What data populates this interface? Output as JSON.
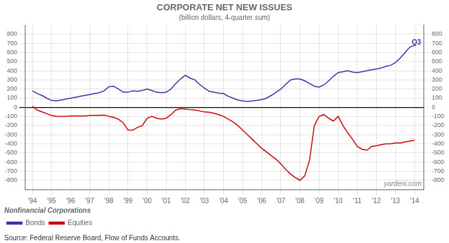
{
  "chart_data": {
    "type": "line",
    "title": "CORPORATE NET NEW ISSUES",
    "subtitle": "(billion dollars, 4-quarter sum)",
    "source": "Source: Federal Reserve Board, Flow of Funds Accounts.",
    "watermark": "yardeni.com",
    "annotations": [
      {
        "text": "Q3",
        "x": 2013.85,
        "y": 670,
        "color": "#3333aa"
      }
    ],
    "legend": "lower left",
    "legend_title": "Nonfinancial Corporations",
    "grid": true,
    "xlim": [
      1993.6,
      2014.5
    ],
    "xticks": [
      {
        "value": 1994,
        "label": "'94"
      },
      {
        "value": 1995,
        "label": "'95"
      },
      {
        "value": 1996,
        "label": "'96"
      },
      {
        "value": 1997,
        "label": "'97"
      },
      {
        "value": 1998,
        "label": "'98"
      },
      {
        "value": 1999,
        "label": "'99"
      },
      {
        "value": 2000,
        "label": "'00"
      },
      {
        "value": 2001,
        "label": "'01"
      },
      {
        "value": 2002,
        "label": "'02"
      },
      {
        "value": 2003,
        "label": "'03"
      },
      {
        "value": 2004,
        "label": "'04"
      },
      {
        "value": 2005,
        "label": "'05"
      },
      {
        "value": 2006,
        "label": "'06"
      },
      {
        "value": 2007,
        "label": "'07"
      },
      {
        "value": 2008,
        "label": "'08"
      },
      {
        "value": 2009,
        "label": "'09"
      },
      {
        "value": 2010,
        "label": "'10"
      },
      {
        "value": 2011,
        "label": "'11"
      },
      {
        "value": 2012,
        "label": "'12"
      },
      {
        "value": 2013,
        "label": "'13"
      },
      {
        "value": 2014,
        "label": "'14"
      }
    ],
    "ylim": [
      -900,
      900
    ],
    "yticks": [
      -800,
      -700,
      -600,
      -500,
      -400,
      -300,
      -200,
      -100,
      0,
      100,
      200,
      300,
      400,
      500,
      600,
      700,
      800
    ],
    "y2lim": [
      -900,
      900
    ],
    "y2ticks": [
      -800,
      -700,
      -600,
      -500,
      -400,
      -300,
      -200,
      -100,
      0,
      100,
      200,
      300,
      400,
      500,
      600,
      700,
      800
    ],
    "x": [
      1994,
      1994.25,
      1994.5,
      1994.75,
      1995,
      1995.25,
      1995.5,
      1995.75,
      1996,
      1996.25,
      1996.5,
      1996.75,
      1997,
      1997.25,
      1997.5,
      1997.75,
      1998,
      1998.25,
      1998.5,
      1998.75,
      1999,
      1999.25,
      1999.5,
      1999.75,
      2000,
      2000.25,
      2000.5,
      2000.75,
      2001,
      2001.25,
      2001.5,
      2001.75,
      2002,
      2002.25,
      2002.5,
      2002.75,
      2003,
      2003.25,
      2003.5,
      2003.75,
      2004,
      2004.25,
      2004.5,
      2004.75,
      2005,
      2005.25,
      2005.5,
      2005.75,
      2006,
      2006.25,
      2006.5,
      2006.75,
      2007,
      2007.25,
      2007.5,
      2007.75,
      2008,
      2008.25,
      2008.5,
      2008.75,
      2009,
      2009.25,
      2009.5,
      2009.75,
      2010,
      2010.25,
      2010.5,
      2010.75,
      2011,
      2011.25,
      2011.5,
      2011.75,
      2012,
      2012.25,
      2012.5,
      2012.75,
      2013,
      2013.25,
      2013.5,
      2013.75,
      2014
    ],
    "series": [
      {
        "name": "Bonds",
        "color": "#3333aa",
        "values": [
          180,
          150,
          130,
          100,
          75,
          70,
          80,
          90,
          100,
          110,
          120,
          130,
          140,
          150,
          160,
          180,
          225,
          230,
          200,
          165,
          165,
          180,
          175,
          185,
          200,
          185,
          165,
          160,
          165,
          200,
          260,
          310,
          350,
          320,
          300,
          250,
          210,
          175,
          165,
          155,
          150,
          120,
          100,
          80,
          70,
          65,
          70,
          75,
          85,
          100,
          130,
          165,
          200,
          250,
          300,
          310,
          310,
          290,
          260,
          230,
          220,
          245,
          290,
          340,
          380,
          390,
          400,
          385,
          380,
          390,
          400,
          410,
          420,
          430,
          450,
          460,
          490,
          540,
          600,
          660,
          680
        ]
      },
      {
        "name": "Equities",
        "color": "#cc0000",
        "values": [
          10,
          -30,
          -50,
          -70,
          -90,
          -100,
          -100,
          -100,
          -95,
          -95,
          -95,
          -95,
          -90,
          -90,
          -90,
          -85,
          -100,
          -110,
          -130,
          -170,
          -250,
          -250,
          -220,
          -200,
          -120,
          -100,
          -120,
          -130,
          -120,
          -80,
          -30,
          -15,
          -20,
          -25,
          -30,
          -40,
          -50,
          -55,
          -65,
          -80,
          -100,
          -130,
          -160,
          -200,
          -250,
          -300,
          -350,
          -400,
          -450,
          -490,
          -530,
          -570,
          -620,
          -680,
          -730,
          -770,
          -800,
          -750,
          -580,
          -200,
          -100,
          -80,
          -120,
          -150,
          -100,
          -200,
          -280,
          -350,
          -430,
          -460,
          -470,
          -430,
          -420,
          -410,
          -400,
          -400,
          -390,
          -390,
          -380,
          -370,
          -360
        ]
      }
    ]
  }
}
